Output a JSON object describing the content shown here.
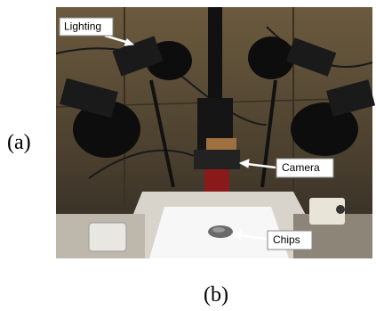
{
  "figure": {
    "panel_a_label": "(a)",
    "panel_b_label": "(b)",
    "annotations": {
      "lighting": "Lighting",
      "camera": "Camera",
      "chips": "Chips"
    }
  }
}
